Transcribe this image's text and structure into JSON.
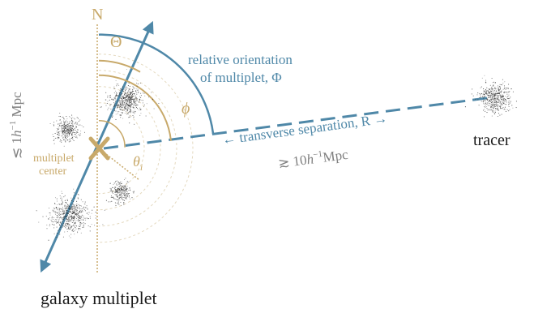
{
  "labels": {
    "north": "N",
    "theta_upper": "Θ",
    "phi_lower": "ϕ",
    "theta_i": "θ",
    "theta_i_sub": "i",
    "relative_orientation_line1": "relative orientation",
    "relative_orientation_line2": "of multiplet, Φ",
    "transverse_separation": "← transverse separation, R →",
    "separation_scale_prefix": "≳ 10",
    "separation_scale_sup": "−1",
    "separation_scale_unit": "Mpc",
    "multiplet_scale_prefix": "≲ 1",
    "multiplet_scale_sup": "−1",
    "multiplet_scale_unit": " Mpc",
    "h": "h",
    "multiplet_center_line1": "multiplet",
    "multiplet_center_line2": "center",
    "tracer": "tracer",
    "galaxy_multiplet": "galaxy multiplet"
  },
  "colors": {
    "gold": "#c8a96a",
    "blue": "#4f88a8",
    "grey": "#808080",
    "text": "#1a1a1a",
    "galaxy": "#222222"
  }
}
